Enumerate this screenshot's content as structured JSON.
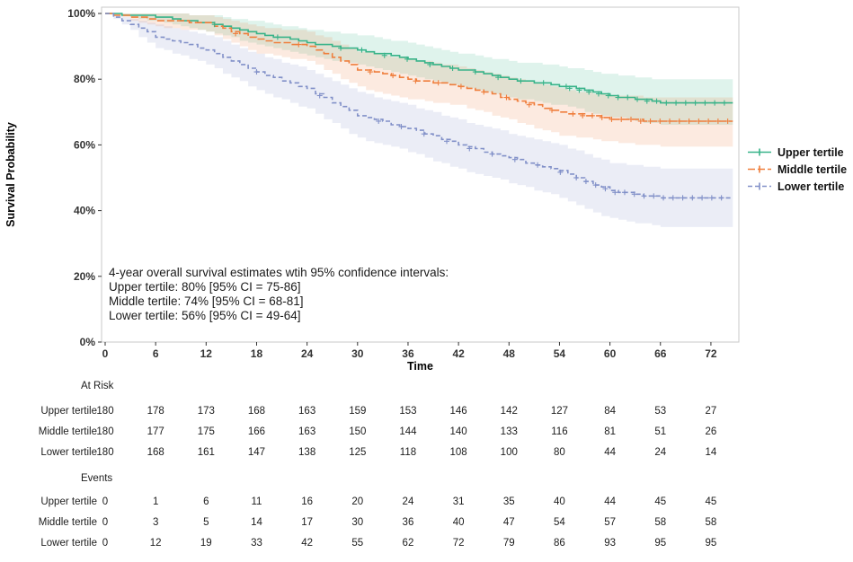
{
  "chart_data": {
    "type": "line",
    "subtype": "kaplan-meier-step",
    "title": "",
    "xlabel": "Time",
    "ylabel": "Survival Probability",
    "xlim": [
      0,
      74
    ],
    "ylim": [
      0,
      100
    ],
    "grid": false,
    "legend_position": "right",
    "x": [
      0,
      6,
      12,
      18,
      24,
      30,
      36,
      42,
      48,
      54,
      60,
      66,
      72
    ],
    "yticks": [
      0,
      20,
      40,
      60,
      80,
      100
    ],
    "ytick_labels": [
      "0%",
      "20%",
      "40%",
      "60%",
      "80%",
      "100%"
    ],
    "series": [
      {
        "name": "Upper tertile",
        "color": "#38b389",
        "dash": "",
        "values": [
          100,
          99,
          97,
          94,
          91,
          89,
          86,
          83,
          80,
          78,
          75,
          73,
          73
        ],
        "ci_lower": [
          100,
          97.5,
          94.5,
          90.5,
          87,
          84.5,
          81,
          78,
          74.5,
          72,
          68.5,
          66,
          66
        ],
        "ci_upper": [
          100,
          100,
          99.5,
          97.5,
          95,
          93.5,
          91,
          88,
          85.5,
          84,
          81.5,
          80,
          80
        ]
      },
      {
        "name": "Middle tertile",
        "color": "#ef7e3c",
        "dash": "8 3",
        "values": [
          100,
          98,
          97,
          92,
          90,
          83,
          80,
          78,
          74,
          70,
          68,
          67,
          67
        ],
        "ci_lower": [
          100,
          96,
          94.5,
          88,
          85.5,
          77.5,
          74,
          72,
          67.5,
          63,
          61,
          59.5,
          59.5
        ],
        "ci_upper": [
          100,
          100,
          99.5,
          96,
          94.5,
          88.5,
          86,
          84,
          80.5,
          77,
          75,
          74.5,
          74.5
        ]
      },
      {
        "name": "Lower tertile",
        "color": "#8190c8",
        "dash": "5 3",
        "values": [
          100,
          93,
          89,
          82,
          77,
          69,
          65,
          60,
          56,
          52,
          46,
          44,
          44
        ],
        "ci_lower": [
          100,
          89.5,
          84.5,
          76.5,
          71,
          62,
          58,
          52.5,
          48.5,
          44,
          37.5,
          35,
          35
        ],
        "ci_upper": [
          100,
          96.5,
          93.5,
          87.5,
          83,
          76,
          72,
          67.5,
          63.5,
          60,
          54.5,
          53,
          53
        ]
      }
    ],
    "annotation": {
      "lines": [
        "4-year overall survival estimates wtih 95% confidence intervals:",
        "Upper tertile: 80% [95% CI = 75-86]",
        "Middle tertile: 74% [95% CI = 68-81]",
        "Lower tertile: 56% [95% CI = 49-64]"
      ]
    }
  },
  "risk_table": {
    "at_risk_label": "At Risk",
    "events_label": "Events",
    "row_labels": [
      "Upper tertile",
      "Middle tertile",
      "Lower tertile"
    ],
    "at_risk": [
      [
        180,
        178,
        173,
        168,
        163,
        159,
        153,
        146,
        142,
        127,
        84,
        53,
        27
      ],
      [
        180,
        177,
        175,
        166,
        163,
        150,
        144,
        140,
        133,
        116,
        81,
        51,
        26
      ],
      [
        180,
        168,
        161,
        147,
        138,
        125,
        118,
        108,
        100,
        80,
        44,
        24,
        14
      ]
    ],
    "events": [
      [
        0,
        1,
        6,
        11,
        16,
        20,
        24,
        31,
        35,
        40,
        44,
        45,
        45
      ],
      [
        0,
        3,
        5,
        14,
        17,
        30,
        36,
        40,
        47,
        54,
        57,
        58,
        58
      ],
      [
        0,
        12,
        19,
        33,
        42,
        55,
        62,
        72,
        79,
        86,
        93,
        95,
        95
      ]
    ]
  }
}
